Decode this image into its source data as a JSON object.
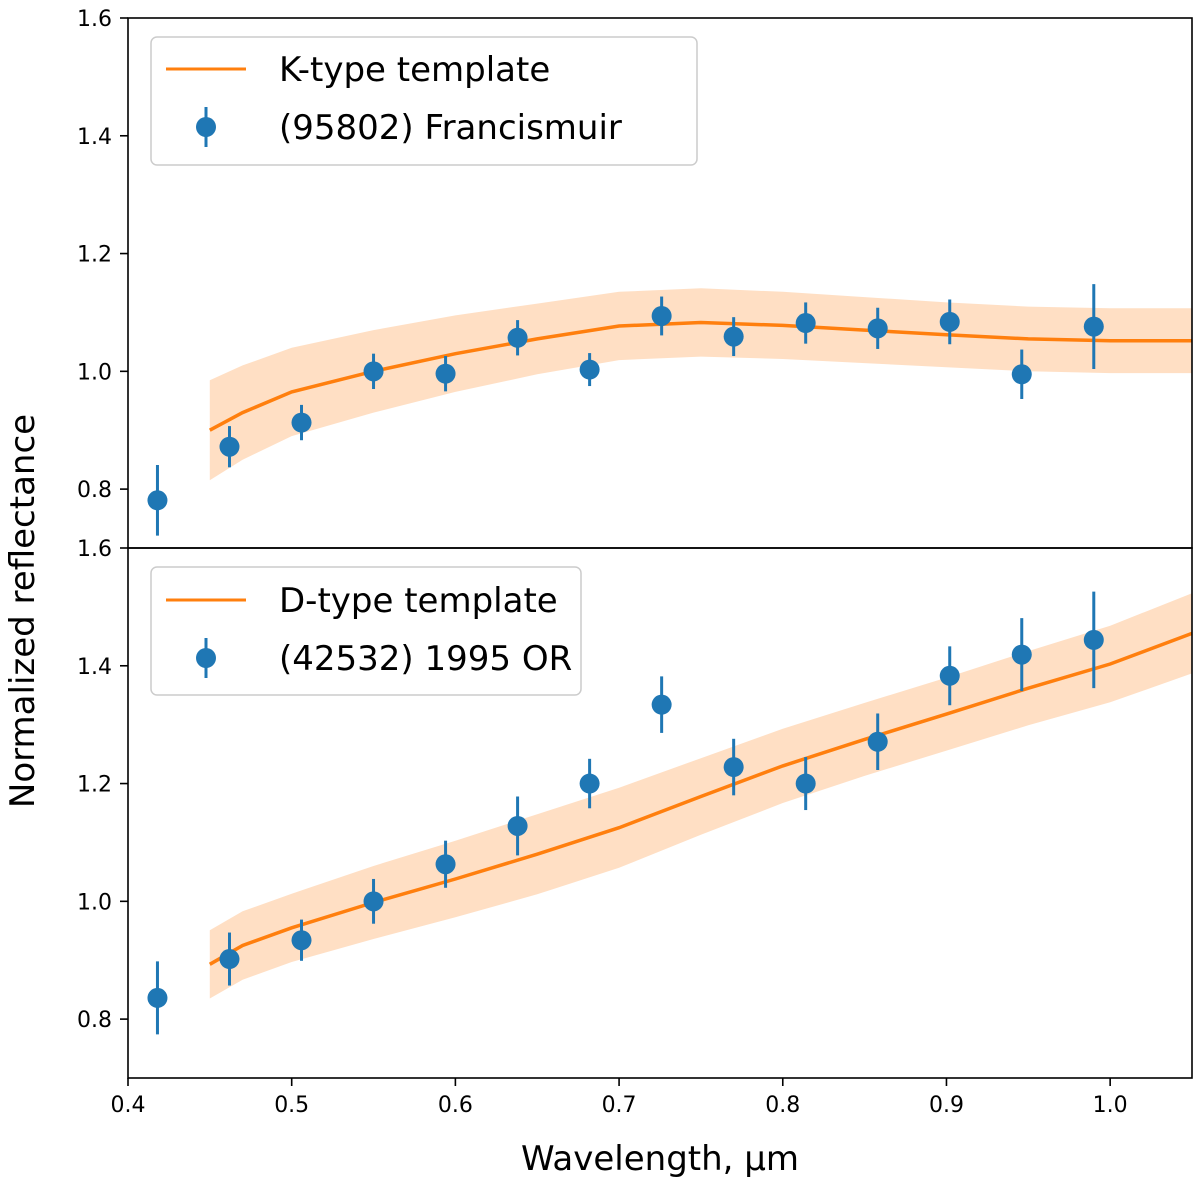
{
  "chart_data": {
    "type": "scatter",
    "xlabel": "Wavelength, μm",
    "ylabel": "Normalized reflectance",
    "xlim": [
      0.4,
      1.05
    ],
    "x_ticks": [
      "0.4",
      "0.5",
      "0.6",
      "0.7",
      "0.8",
      "0.9",
      "1.0"
    ],
    "colors": {
      "template": "#ff7f0e",
      "band": "#ffd4b0",
      "data": "#1f77b4"
    },
    "panels": [
      {
        "ylim": [
          0.7,
          1.6
        ],
        "y_ticks": [
          "0.8",
          "1.0",
          "1.2",
          "1.4",
          "1.6"
        ],
        "template_label": "K-type template",
        "data_label": "(95802) Francismuir",
        "template": {
          "x": [
            0.45,
            0.47,
            0.5,
            0.55,
            0.6,
            0.65,
            0.7,
            0.75,
            0.8,
            0.85,
            0.9,
            0.95,
            1.0,
            1.05
          ],
          "y": [
            0.9,
            0.93,
            0.965,
            1.0,
            1.03,
            1.055,
            1.077,
            1.083,
            1.078,
            1.07,
            1.062,
            1.055,
            1.052,
            1.052
          ],
          "err": [
            0.085,
            0.08,
            0.075,
            0.07,
            0.065,
            0.06,
            0.058,
            0.058,
            0.057,
            0.056,
            0.055,
            0.055,
            0.055,
            0.055
          ]
        },
        "points": {
          "x": [
            0.418,
            0.462,
            0.506,
            0.55,
            0.594,
            0.638,
            0.682,
            0.726,
            0.77,
            0.814,
            0.858,
            0.902,
            0.946,
            0.99
          ],
          "y": [
            0.781,
            0.872,
            0.913,
            1.0,
            0.996,
            1.057,
            1.003,
            1.094,
            1.059,
            1.082,
            1.073,
            1.084,
            0.995,
            1.076
          ],
          "err": [
            0.06,
            0.035,
            0.03,
            0.03,
            0.03,
            0.03,
            0.028,
            0.033,
            0.033,
            0.035,
            0.035,
            0.038,
            0.042,
            0.072
          ]
        }
      },
      {
        "ylim": [
          0.7,
          1.6
        ],
        "y_ticks": [
          "0.8",
          "1.0",
          "1.2",
          "1.4",
          "1.6"
        ],
        "template_label": "D-type template",
        "data_label": "(42532) 1995 OR",
        "template": {
          "x": [
            0.45,
            0.47,
            0.5,
            0.55,
            0.6,
            0.65,
            0.7,
            0.75,
            0.8,
            0.85,
            0.9,
            0.95,
            1.0,
            1.05
          ],
          "y": [
            0.893,
            0.925,
            0.955,
            0.998,
            1.038,
            1.08,
            1.125,
            1.178,
            1.23,
            1.275,
            1.318,
            1.362,
            1.403,
            1.455
          ],
          "err": [
            0.058,
            0.058,
            0.058,
            0.062,
            0.065,
            0.068,
            0.068,
            0.065,
            0.063,
            0.062,
            0.062,
            0.063,
            0.065,
            0.068
          ]
        },
        "points": {
          "x": [
            0.418,
            0.462,
            0.506,
            0.55,
            0.594,
            0.638,
            0.682,
            0.726,
            0.77,
            0.814,
            0.858,
            0.902,
            0.946,
            0.99
          ],
          "y": [
            0.836,
            0.902,
            0.934,
            1.0,
            1.063,
            1.128,
            1.2,
            1.334,
            1.228,
            1.2,
            1.271,
            1.383,
            1.419,
            1.444
          ],
          "err": [
            0.062,
            0.045,
            0.035,
            0.038,
            0.04,
            0.05,
            0.042,
            0.048,
            0.048,
            0.045,
            0.048,
            0.05,
            0.062,
            0.082
          ]
        }
      }
    ]
  }
}
